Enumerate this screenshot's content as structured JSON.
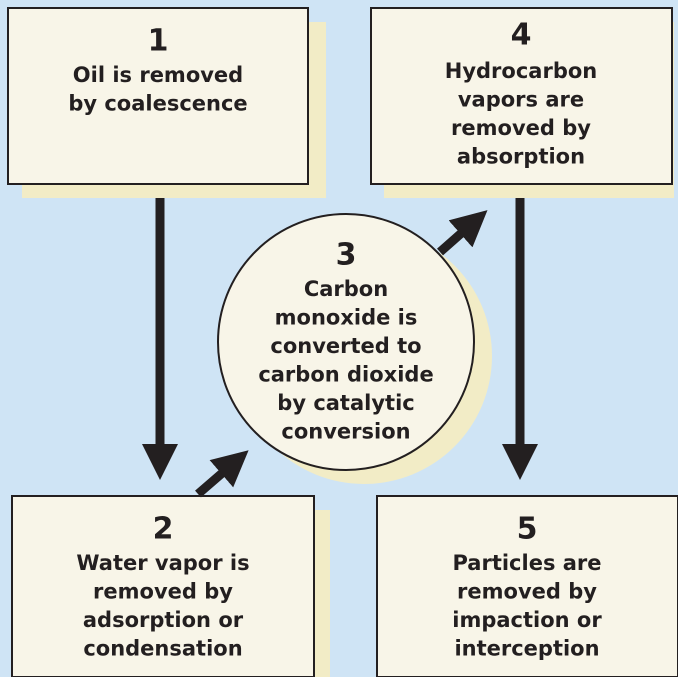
{
  "nodes": [
    {
      "number": "1",
      "lines": [
        "Oil is removed",
        "by coalescence"
      ]
    },
    {
      "number": "2",
      "lines": [
        "Water vapor is",
        "removed by",
        "adsorption or",
        "condensation"
      ]
    },
    {
      "number": "3",
      "lines": [
        "Carbon",
        "monoxide is",
        "converted to",
        "carbon dioxide",
        "by catalytic",
        "conversion"
      ]
    },
    {
      "number": "4",
      "lines": [
        "Hydrocarbon",
        "vapors are",
        "removed by",
        "absorption"
      ]
    },
    {
      "number": "5",
      "lines": [
        "Particles are",
        "removed by",
        "impaction or",
        "interception"
      ]
    }
  ]
}
